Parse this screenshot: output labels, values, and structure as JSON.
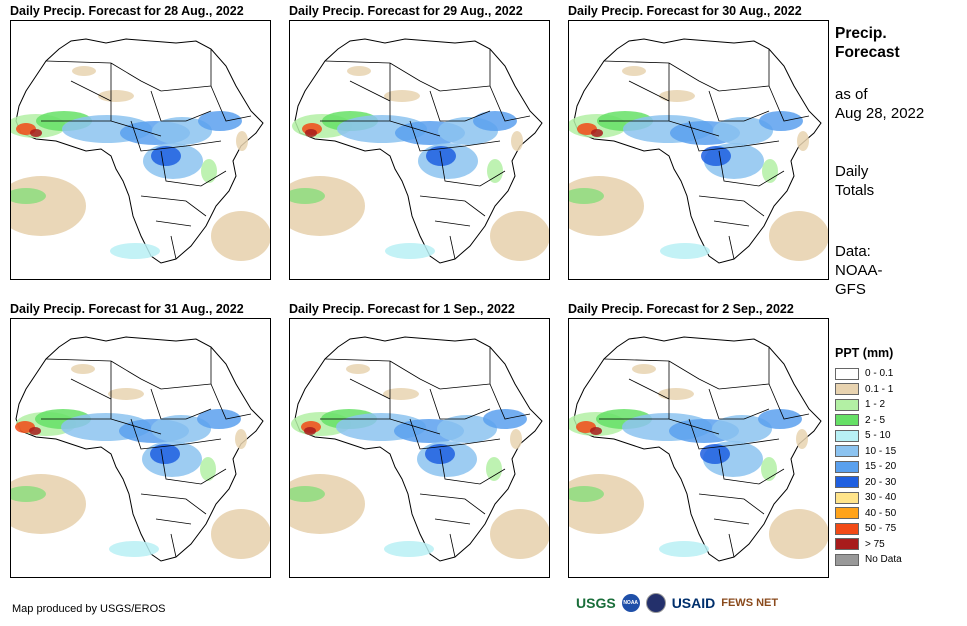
{
  "panels": [
    {
      "title": "Daily Precip. Forecast for 28 Aug., 2022"
    },
    {
      "title": "Daily Precip. Forecast for 29 Aug., 2022"
    },
    {
      "title": "Daily Precip. Forecast for 30 Aug., 2022"
    },
    {
      "title": "Daily Precip. Forecast for 31 Aug., 2022"
    },
    {
      "title": "Daily Precip. Forecast for 1 Sep., 2022"
    },
    {
      "title": "Daily Precip. Forecast for 2 Sep., 2022"
    }
  ],
  "side_text": {
    "heading_line1": "Precip.",
    "heading_line2": "Forecast",
    "asof_line1": "as of",
    "asof_line2": "Aug 28, 2022",
    "totals_line1": "Daily",
    "totals_line2": "Totals",
    "data_line1": "Data:",
    "data_line2": "NOAA-",
    "data_line3": "GFS"
  },
  "legend": {
    "title": "PPT (mm)",
    "items": [
      {
        "label": "0 - 0.1",
        "color": "#ffffff"
      },
      {
        "label": "0.1 - 1",
        "color": "#e8d3b0"
      },
      {
        "label": "1 - 2",
        "color": "#b3f0a4"
      },
      {
        "label": "2 - 5",
        "color": "#66e066"
      },
      {
        "label": "5 - 10",
        "color": "#b8f0f5"
      },
      {
        "label": "10 - 15",
        "color": "#8cc3f0"
      },
      {
        "label": "15 - 20",
        "color": "#5aa0ee"
      },
      {
        "label": "20 - 30",
        "color": "#1f5fe0"
      },
      {
        "label": "30 - 40",
        "color": "#ffe48a"
      },
      {
        "label": "40 - 50",
        "color": "#ffa31a"
      },
      {
        "label": "50 - 75",
        "color": "#f24a16"
      },
      {
        "label": "> 75",
        "color": "#a81c1c"
      },
      {
        "label": "No Data",
        "color": "#999999"
      }
    ]
  },
  "credit": "Map produced by USGS/EROS",
  "logos": {
    "usgs": "USGS",
    "noaa": "NOAA",
    "usaid": "USAID",
    "fewsnet": "FEWS NET"
  }
}
